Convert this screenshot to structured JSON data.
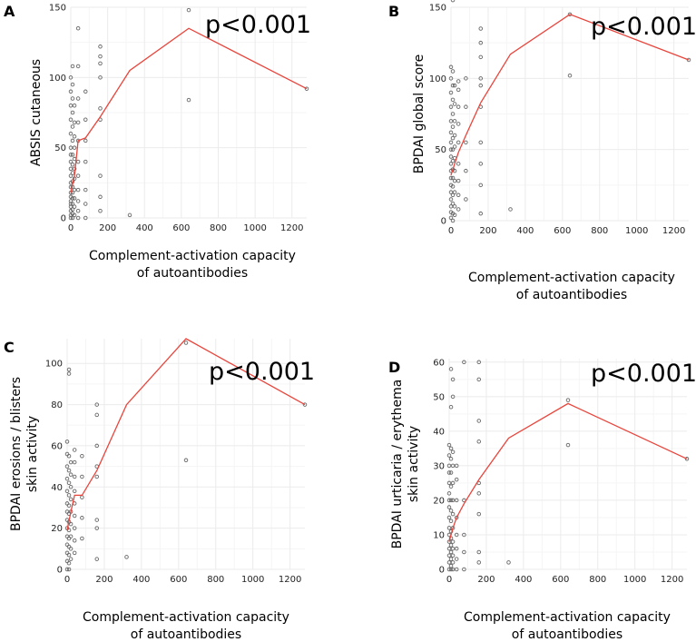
{
  "chart_data": [
    {
      "type": "scatter",
      "panel_label": "A",
      "title": "",
      "xlabel_line1": "Complement-activation capacity",
      "xlabel_line2": "of autoantibodies",
      "ylabel_lines": [
        "ABSIS cutaneous"
      ],
      "annotation": "p<0.001",
      "xlim": [
        0,
        1280
      ],
      "ylim": [
        0,
        150
      ],
      "xticks": [
        0,
        200,
        400,
        600,
        800,
        1000,
        1200
      ],
      "yticks": [
        0,
        50,
        100,
        150
      ],
      "trend_line_color": "#e8453c",
      "trend_line": [
        [
          0,
          18
        ],
        [
          20,
          30
        ],
        [
          40,
          55
        ],
        [
          80,
          57
        ],
        [
          160,
          72
        ],
        [
          320,
          105
        ],
        [
          640,
          135
        ],
        [
          1280,
          92
        ]
      ],
      "points": [
        [
          0,
          0
        ],
        [
          0,
          2
        ],
        [
          0,
          5
        ],
        [
          0,
          8
        ],
        [
          0,
          10
        ],
        [
          0,
          12
        ],
        [
          0,
          15
        ],
        [
          0,
          18
        ],
        [
          0,
          22
        ],
        [
          0,
          25
        ],
        [
          0,
          30
        ],
        [
          0,
          35
        ],
        [
          0,
          40
        ],
        [
          0,
          45
        ],
        [
          0,
          50
        ],
        [
          0,
          60
        ],
        [
          0,
          70
        ],
        [
          0,
          80
        ],
        [
          0,
          90
        ],
        [
          0,
          100
        ],
        [
          10,
          0
        ],
        [
          10,
          3
        ],
        [
          10,
          6
        ],
        [
          10,
          10
        ],
        [
          10,
          14
        ],
        [
          10,
          18
        ],
        [
          10,
          22
        ],
        [
          10,
          26
        ],
        [
          10,
          32
        ],
        [
          10,
          38
        ],
        [
          10,
          45
        ],
        [
          10,
          55
        ],
        [
          10,
          65
        ],
        [
          10,
          75
        ],
        [
          10,
          85
        ],
        [
          10,
          95
        ],
        [
          10,
          108
        ],
        [
          20,
          2
        ],
        [
          20,
          8
        ],
        [
          20,
          14
        ],
        [
          20,
          20
        ],
        [
          20,
          28
        ],
        [
          20,
          35
        ],
        [
          20,
          42
        ],
        [
          20,
          50
        ],
        [
          20,
          58
        ],
        [
          20,
          68
        ],
        [
          20,
          80
        ],
        [
          40,
          0
        ],
        [
          40,
          5
        ],
        [
          40,
          12
        ],
        [
          40,
          20
        ],
        [
          40,
          30
        ],
        [
          40,
          40
        ],
        [
          40,
          55
        ],
        [
          40,
          68
        ],
        [
          40,
          85
        ],
        [
          40,
          108
        ],
        [
          40,
          135
        ],
        [
          80,
          0
        ],
        [
          80,
          10
        ],
        [
          80,
          20
        ],
        [
          80,
          40
        ],
        [
          80,
          55
        ],
        [
          80,
          70
        ],
        [
          80,
          90
        ],
        [
          160,
          5
        ],
        [
          160,
          15
        ],
        [
          160,
          30
        ],
        [
          160,
          70
        ],
        [
          160,
          78
        ],
        [
          160,
          100
        ],
        [
          160,
          110
        ],
        [
          160,
          115
        ],
        [
          160,
          122
        ],
        [
          320,
          2
        ],
        [
          640,
          84
        ],
        [
          640,
          148
        ],
        [
          1280,
          92
        ]
      ]
    },
    {
      "type": "scatter",
      "panel_label": "B",
      "title": "",
      "xlabel_line1": "Complement-activation capacity",
      "xlabel_line2": "of autoantibodies",
      "ylabel_lines": [
        "BPDAI global score"
      ],
      "annotation": "p<0.001",
      "xlim": [
        0,
        1280
      ],
      "ylim": [
        0,
        150
      ],
      "xticks": [
        0,
        200,
        400,
        600,
        800,
        1000,
        1200
      ],
      "yticks": [
        0,
        50,
        100,
        150
      ],
      "trend_line_color": "#e8453c",
      "trend_line": [
        [
          0,
          32
        ],
        [
          20,
          40
        ],
        [
          40,
          48
        ],
        [
          80,
          60
        ],
        [
          160,
          83
        ],
        [
          320,
          117
        ],
        [
          640,
          145
        ],
        [
          1280,
          113
        ]
      ],
      "points": [
        [
          0,
          2
        ],
        [
          0,
          6
        ],
        [
          0,
          10
        ],
        [
          0,
          15
        ],
        [
          0,
          20
        ],
        [
          0,
          25
        ],
        [
          0,
          30
        ],
        [
          0,
          35
        ],
        [
          0,
          40
        ],
        [
          0,
          45
        ],
        [
          0,
          50
        ],
        [
          0,
          55
        ],
        [
          0,
          62
        ],
        [
          0,
          70
        ],
        [
          0,
          80
        ],
        [
          0,
          90
        ],
        [
          0,
          100
        ],
        [
          0,
          108
        ],
        [
          10,
          0
        ],
        [
          10,
          5
        ],
        [
          10,
          12
        ],
        [
          10,
          18
        ],
        [
          10,
          24
        ],
        [
          10,
          30
        ],
        [
          10,
          36
        ],
        [
          10,
          42
        ],
        [
          10,
          50
        ],
        [
          10,
          58
        ],
        [
          10,
          66
        ],
        [
          10,
          75
        ],
        [
          10,
          85
        ],
        [
          10,
          95
        ],
        [
          10,
          105
        ],
        [
          10,
          155
        ],
        [
          20,
          4
        ],
        [
          20,
          10
        ],
        [
          20,
          20
        ],
        [
          20,
          28
        ],
        [
          20,
          35
        ],
        [
          20,
          44
        ],
        [
          20,
          52
        ],
        [
          20,
          60
        ],
        [
          20,
          70
        ],
        [
          20,
          82
        ],
        [
          20,
          95
        ],
        [
          40,
          8
        ],
        [
          40,
          18
        ],
        [
          40,
          28
        ],
        [
          40,
          40
        ],
        [
          40,
          55
        ],
        [
          40,
          68
        ],
        [
          40,
          80
        ],
        [
          40,
          92
        ],
        [
          40,
          98
        ],
        [
          80,
          15
        ],
        [
          80,
          35
        ],
        [
          80,
          55
        ],
        [
          80,
          80
        ],
        [
          80,
          100
        ],
        [
          160,
          5
        ],
        [
          160,
          25
        ],
        [
          160,
          40
        ],
        [
          160,
          55
        ],
        [
          160,
          80
        ],
        [
          160,
          95
        ],
        [
          160,
          100
        ],
        [
          160,
          115
        ],
        [
          160,
          125
        ],
        [
          160,
          135
        ],
        [
          320,
          8
        ],
        [
          640,
          102
        ],
        [
          640,
          145
        ],
        [
          1280,
          113
        ]
      ]
    },
    {
      "type": "scatter",
      "panel_label": "C",
      "title": "",
      "xlabel_line1": "Complement-activation capacity",
      "xlabel_line2": "of autoantibodies",
      "ylabel_lines": [
        "BPDAI erosions / blisters",
        "skin activity"
      ],
      "annotation": "p<0.001",
      "xlim": [
        0,
        1280
      ],
      "ylim": [
        0,
        112
      ],
      "xticks": [
        0,
        200,
        400,
        600,
        800,
        1000,
        1200
      ],
      "yticks": [
        0,
        20,
        40,
        60,
        80,
        100
      ],
      "trend_line_color": "#e8453c",
      "trend_line": [
        [
          0,
          19
        ],
        [
          20,
          28
        ],
        [
          40,
          36
        ],
        [
          80,
          36
        ],
        [
          160,
          48
        ],
        [
          320,
          80
        ],
        [
          640,
          112
        ],
        [
          1280,
          80
        ]
      ],
      "points": [
        [
          0,
          0
        ],
        [
          0,
          4
        ],
        [
          0,
          8
        ],
        [
          0,
          12
        ],
        [
          0,
          16
        ],
        [
          0,
          20
        ],
        [
          0,
          24
        ],
        [
          0,
          28
        ],
        [
          0,
          32
        ],
        [
          0,
          38
        ],
        [
          0,
          44
        ],
        [
          0,
          50
        ],
        [
          0,
          56
        ],
        [
          0,
          62
        ],
        [
          10,
          0
        ],
        [
          10,
          3
        ],
        [
          10,
          7
        ],
        [
          10,
          11
        ],
        [
          10,
          15
        ],
        [
          10,
          19
        ],
        [
          10,
          23
        ],
        [
          10,
          27
        ],
        [
          10,
          31
        ],
        [
          10,
          36
        ],
        [
          10,
          42
        ],
        [
          10,
          48
        ],
        [
          10,
          55
        ],
        [
          10,
          95
        ],
        [
          10,
          97
        ],
        [
          20,
          5
        ],
        [
          20,
          10
        ],
        [
          20,
          16
        ],
        [
          20,
          22
        ],
        [
          20,
          28
        ],
        [
          20,
          34
        ],
        [
          20,
          40
        ],
        [
          20,
          46
        ],
        [
          20,
          52
        ],
        [
          40,
          8
        ],
        [
          40,
          14
        ],
        [
          40,
          20
        ],
        [
          40,
          26
        ],
        [
          40,
          32
        ],
        [
          40,
          38
        ],
        [
          40,
          45
        ],
        [
          40,
          52
        ],
        [
          40,
          58
        ],
        [
          80,
          15
        ],
        [
          80,
          25
        ],
        [
          80,
          35
        ],
        [
          80,
          45
        ],
        [
          80,
          55
        ],
        [
          160,
          5
        ],
        [
          160,
          20
        ],
        [
          160,
          24
        ],
        [
          160,
          45
        ],
        [
          160,
          50
        ],
        [
          160,
          60
        ],
        [
          160,
          75
        ],
        [
          160,
          80
        ],
        [
          320,
          6
        ],
        [
          640,
          53
        ],
        [
          640,
          110
        ],
        [
          1280,
          80
        ]
      ]
    },
    {
      "type": "scatter",
      "panel_label": "D",
      "title": "",
      "xlabel_line1": "Complement-activation capacity",
      "xlabel_line2": "of autoantibodies",
      "ylabel_lines": [
        "BPDAI urticaria / erythema",
        "skin activity"
      ],
      "annotation": "p<0.001",
      "xlim": [
        0,
        1280
      ],
      "ylim": [
        0,
        61
      ],
      "xticks": [
        0,
        200,
        400,
        600,
        800,
        1000,
        1200
      ],
      "yticks": [
        0,
        10,
        20,
        30,
        40,
        50,
        60
      ],
      "trend_line_color": "#e8453c",
      "trend_line": [
        [
          0,
          8
        ],
        [
          20,
          12
        ],
        [
          40,
          15
        ],
        [
          80,
          19
        ],
        [
          160,
          26
        ],
        [
          320,
          38
        ],
        [
          640,
          48
        ],
        [
          1280,
          32
        ]
      ],
      "points": [
        [
          0,
          0
        ],
        [
          0,
          2
        ],
        [
          0,
          4
        ],
        [
          0,
          6
        ],
        [
          0,
          8
        ],
        [
          0,
          10
        ],
        [
          0,
          12
        ],
        [
          0,
          15
        ],
        [
          0,
          18
        ],
        [
          0,
          20
        ],
        [
          0,
          22
        ],
        [
          0,
          25
        ],
        [
          0,
          28
        ],
        [
          0,
          30
        ],
        [
          0,
          33
        ],
        [
          0,
          36
        ],
        [
          10,
          0
        ],
        [
          10,
          1
        ],
        [
          10,
          3
        ],
        [
          10,
          5
        ],
        [
          10,
          7
        ],
        [
          10,
          9
        ],
        [
          10,
          11
        ],
        [
          10,
          14
        ],
        [
          10,
          17
        ],
        [
          10,
          20
        ],
        [
          10,
          24
        ],
        [
          10,
          28
        ],
        [
          10,
          32
        ],
        [
          10,
          35
        ],
        [
          10,
          47
        ],
        [
          10,
          58
        ],
        [
          20,
          0
        ],
        [
          20,
          2
        ],
        [
          20,
          4
        ],
        [
          20,
          6
        ],
        [
          20,
          8
        ],
        [
          20,
          12
        ],
        [
          20,
          16
        ],
        [
          20,
          20
        ],
        [
          20,
          25
        ],
        [
          20,
          30
        ],
        [
          20,
          34
        ],
        [
          20,
          50
        ],
        [
          20,
          55
        ],
        [
          40,
          0
        ],
        [
          40,
          3
        ],
        [
          40,
          6
        ],
        [
          40,
          10
        ],
        [
          40,
          15
        ],
        [
          40,
          20
        ],
        [
          40,
          26
        ],
        [
          40,
          30
        ],
        [
          80,
          0
        ],
        [
          80,
          5
        ],
        [
          80,
          10
        ],
        [
          80,
          20
        ],
        [
          80,
          60
        ],
        [
          160,
          2
        ],
        [
          160,
          5
        ],
        [
          160,
          16
        ],
        [
          160,
          22
        ],
        [
          160,
          25
        ],
        [
          160,
          37
        ],
        [
          160,
          43
        ],
        [
          160,
          55
        ],
        [
          160,
          60
        ],
        [
          320,
          2
        ],
        [
          640,
          36
        ],
        [
          640,
          49
        ],
        [
          1280,
          32
        ]
      ]
    }
  ]
}
